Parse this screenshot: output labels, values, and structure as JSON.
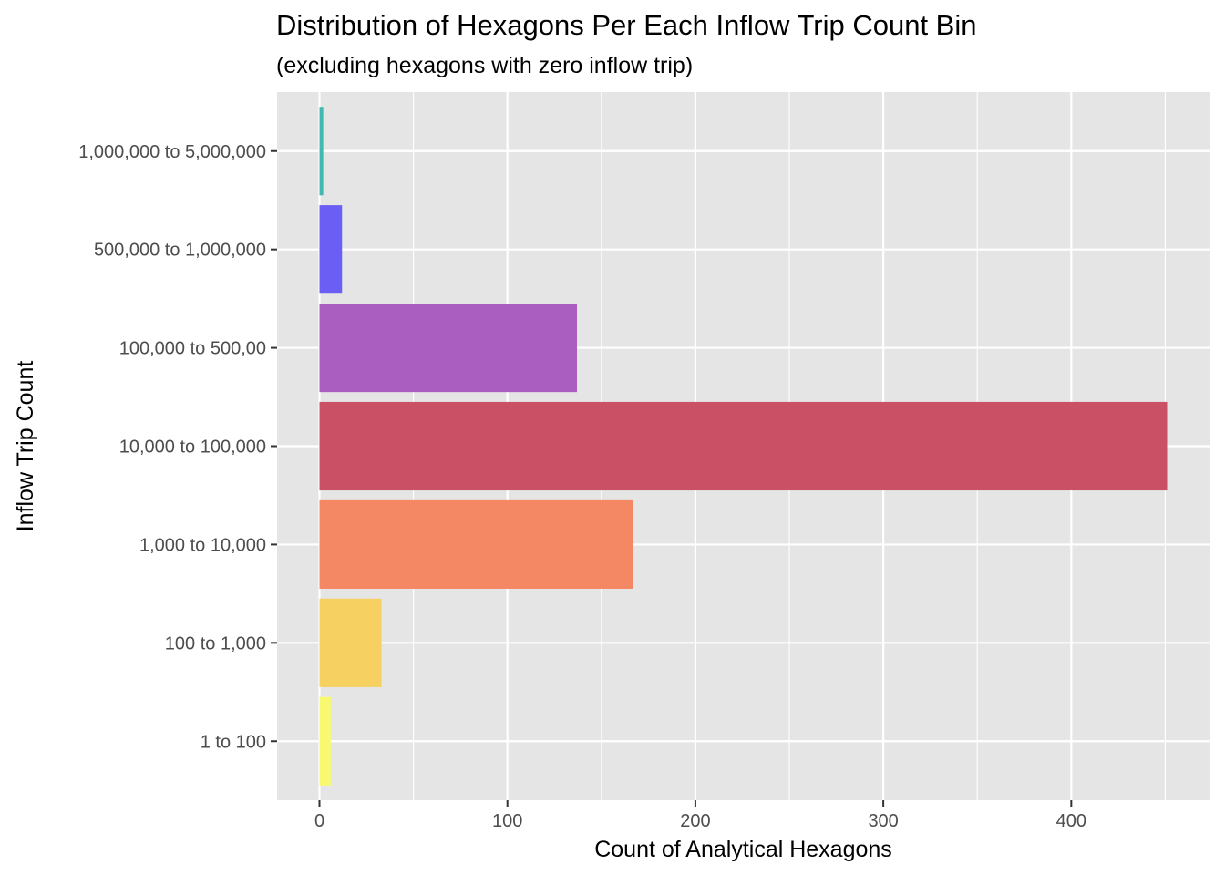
{
  "chart_data": {
    "type": "bar",
    "orientation": "horizontal",
    "title": "Distribution of Hexagons Per Each Inflow Trip Count Bin",
    "subtitle": "(excluding hexagons with zero inflow trip)",
    "xlabel": "Count of Analytical Hexagons",
    "ylabel": "Inflow Trip Count",
    "categories": [
      "1 to 100",
      "100 to 1,000",
      "1,000 to 10,000",
      "10,000 to 100,000",
      "100,000 to 500,00",
      "500,000 to 1,000,000",
      "1,000,000 to 5,000,000"
    ],
    "values": [
      6,
      33,
      167,
      451,
      137,
      12,
      2
    ],
    "colors": [
      "#F9F871",
      "#F6D061",
      "#F48864",
      "#C95065",
      "#A95EC0",
      "#6B5EF4",
      "#42B8B0"
    ],
    "xlim": [
      -22.55,
      473.55
    ],
    "xticks": [
      0,
      100,
      200,
      300,
      400
    ],
    "xtick_labels": [
      "0",
      "100",
      "200",
      "300",
      "400"
    ],
    "grid": true,
    "panel_background": "#E5E5E5",
    "grid_color": "#FFFFFF"
  }
}
